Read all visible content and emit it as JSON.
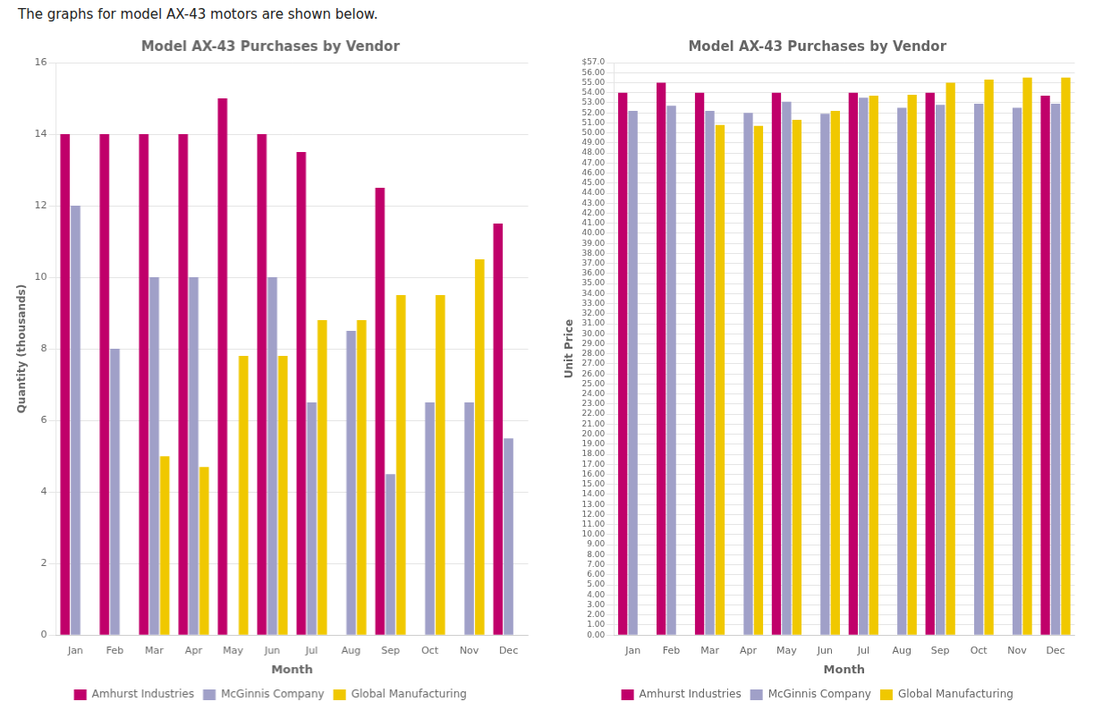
{
  "chart_data": [
    {
      "type": "bar",
      "title": "Model AX-43 Purchases by Vendor",
      "annotations": [
        "The graphs for model AX-43 motors are shown below."
      ],
      "categories": [
        "Jan",
        "Feb",
        "Mar",
        "Apr",
        "May",
        "Jun",
        "Jul",
        "Aug",
        "Sep",
        "Oct",
        "Nov",
        "Dec"
      ],
      "x_label": "Month",
      "y_label": "Quantity (thousands)",
      "series": [
        {
          "name": "Amhurst Industries",
          "color": "#c0006a",
          "values": [
            14,
            14,
            14,
            14,
            15,
            14,
            13.5,
            0,
            12.5,
            0,
            0,
            11.5
          ]
        },
        {
          "name": "McGinnis Company",
          "color": "#a0a0c8",
          "values": [
            12,
            8,
            10,
            10,
            0,
            10,
            6.5,
            8.5,
            4.5,
            6.5,
            6.5,
            5.5
          ]
        },
        {
          "name": "Global Manufacturing",
          "color": "#f0c800",
          "values": [
            0,
            0,
            5,
            4.7,
            7.8,
            7.8,
            8.8,
            8.8,
            9.5,
            9.5,
            10.5,
            0
          ]
        }
      ],
      "ylim": [
        0,
        16
      ],
      "yticks": [
        0,
        2,
        4,
        6,
        8,
        10,
        12,
        14,
        16
      ],
      "grid": true,
      "legend": "bottom"
    },
    {
      "type": "bar",
      "title": "Model AX-43 Purchases by Vendor",
      "categories": [
        "Jan",
        "Feb",
        "Mar",
        "Apr",
        "May",
        "Jun",
        "Jul",
        "Aug",
        "Sep",
        "Oct",
        "Nov",
        "Dec"
      ],
      "x_label": "Month",
      "y_label": "Unit Price",
      "series": [
        {
          "name": "Amhurst Industries",
          "color": "#c0006a",
          "values": [
            54.0,
            55.0,
            54.0,
            0,
            54.0,
            0,
            54.0,
            0,
            54.0,
            0,
            0,
            53.7
          ]
        },
        {
          "name": "McGinnis Company",
          "color": "#a0a0c8",
          "values": [
            52.2,
            52.7,
            52.2,
            52.0,
            53.1,
            51.9,
            53.5,
            52.5,
            52.8,
            52.9,
            52.5,
            52.9
          ]
        },
        {
          "name": "Global Manufacturing",
          "color": "#f0c800",
          "values": [
            0,
            0,
            50.8,
            50.7,
            51.3,
            52.2,
            53.7,
            53.8,
            55.0,
            55.3,
            55.5,
            55.5
          ]
        }
      ],
      "ylim": [
        0,
        57.0
      ],
      "yticks": [
        {
          "value": 57.0,
          "label": "$57.0"
        },
        {
          "value": 56.0,
          "label": "56.00"
        },
        {
          "value": 55.0,
          "label": "55.00"
        },
        {
          "value": 54.0,
          "label": "54.00"
        },
        {
          "value": 53.0,
          "label": "53.00"
        },
        {
          "value": 52.0,
          "label": "52.00"
        },
        {
          "value": 51.0,
          "label": "51.00"
        },
        {
          "value": 50.0,
          "label": "50.00"
        },
        {
          "value": 49.0,
          "label": "49.00"
        },
        {
          "value": 48.0,
          "label": "48.00"
        },
        {
          "value": 47.0,
          "label": "47.00"
        },
        {
          "value": 46.0,
          "label": "46.00"
        },
        {
          "value": 45.0,
          "label": "45.00"
        },
        {
          "value": 44.0,
          "label": "44.00"
        },
        {
          "value": 43.0,
          "label": "43.00"
        },
        {
          "value": 42.0,
          "label": "42.00"
        },
        {
          "value": 41.0,
          "label": "41.00"
        },
        {
          "value": 40.0,
          "label": "40.00"
        },
        {
          "value": 39.0,
          "label": "39.00"
        },
        {
          "value": 38.0,
          "label": "38.00"
        },
        {
          "value": 37.0,
          "label": "37.00"
        },
        {
          "value": 36.0,
          "label": "36.00"
        },
        {
          "value": 35.0,
          "label": "35.00"
        },
        {
          "value": 34.0,
          "label": "34.00"
        },
        {
          "value": 33.0,
          "label": "33.00"
        },
        {
          "value": 32.0,
          "label": "32.00"
        },
        {
          "value": 31.0,
          "label": "31.00"
        },
        {
          "value": 30.0,
          "label": "30.00"
        },
        {
          "value": 29.0,
          "label": "29.00"
        },
        {
          "value": 28.0,
          "label": "28.00"
        },
        {
          "value": 27.0,
          "label": "27.00"
        },
        {
          "value": 26.0,
          "label": "26.00"
        },
        {
          "value": 25.0,
          "label": "25.00"
        },
        {
          "value": 24.0,
          "label": "24.00"
        },
        {
          "value": 23.0,
          "label": "23.00"
        },
        {
          "value": 22.0,
          "label": "22.00"
        },
        {
          "value": 21.0,
          "label": "21.00"
        },
        {
          "value": 20.0,
          "label": "20.00"
        },
        {
          "value": 19.0,
          "label": "19.00"
        },
        {
          "value": 18.0,
          "label": "18.00"
        },
        {
          "value": 17.0,
          "label": "17.00"
        },
        {
          "value": 16.0,
          "label": "16.00"
        },
        {
          "value": 15.0,
          "label": "15.00"
        },
        {
          "value": 14.0,
          "label": "14.00"
        },
        {
          "value": 13.0,
          "label": "13.00"
        },
        {
          "value": 12.0,
          "label": "12.00"
        },
        {
          "value": 11.0,
          "label": "11.00"
        },
        {
          "value": 10.0,
          "label": "10.00"
        },
        {
          "value": 9.0,
          "label": "9.00"
        },
        {
          "value": 8.0,
          "label": "8.00"
        },
        {
          "value": 7.0,
          "label": "7.00"
        },
        {
          "value": 6.0,
          "label": "6.00"
        },
        {
          "value": 5.0,
          "label": "5.00"
        },
        {
          "value": 4.0,
          "label": "4.00"
        },
        {
          "value": 3.0,
          "label": "3.00"
        },
        {
          "value": 2.0,
          "label": "2.00"
        },
        {
          "value": 1.0,
          "label": "1.00"
        },
        {
          "value": 0.0,
          "label": "0.00"
        }
      ],
      "grid": true,
      "legend": "bottom"
    }
  ]
}
